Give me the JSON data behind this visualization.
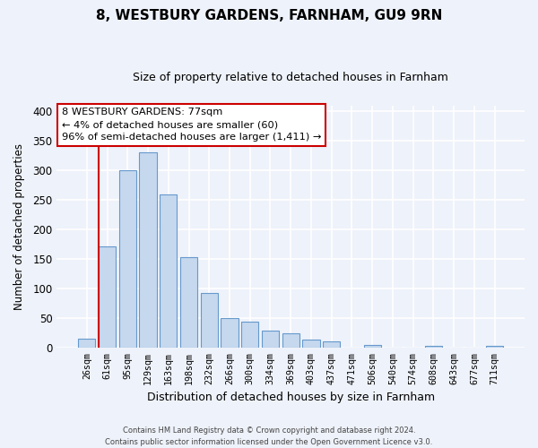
{
  "title": "8, WESTBURY GARDENS, FARNHAM, GU9 9RN",
  "subtitle": "Size of property relative to detached houses in Farnham",
  "xlabel": "Distribution of detached houses by size in Farnham",
  "ylabel": "Number of detached properties",
  "bar_labels": [
    "26sqm",
    "61sqm",
    "95sqm",
    "129sqm",
    "163sqm",
    "198sqm",
    "232sqm",
    "266sqm",
    "300sqm",
    "334sqm",
    "369sqm",
    "403sqm",
    "437sqm",
    "471sqm",
    "506sqm",
    "540sqm",
    "574sqm",
    "608sqm",
    "643sqm",
    "677sqm",
    "711sqm"
  ],
  "bar_heights": [
    15,
    172,
    301,
    330,
    259,
    153,
    92,
    50,
    43,
    29,
    24,
    13,
    11,
    0,
    4,
    0,
    0,
    2,
    0,
    0,
    2
  ],
  "bar_fill_color": "#c5d8ee",
  "bar_edge_color": "#6699cc",
  "highlight_bar_index": 1,
  "highlight_color": "#cc0000",
  "ylim": [
    0,
    410
  ],
  "yticks": [
    0,
    50,
    100,
    150,
    200,
    250,
    300,
    350,
    400
  ],
  "annotation_title": "8 WESTBURY GARDENS: 77sqm",
  "annotation_line1": "← 4% of detached houses are smaller (60)",
  "annotation_line2": "96% of semi-detached houses are larger (1,411) →",
  "annotation_box_color": "#ffffff",
  "annotation_box_edge": "#cc0000",
  "footer_line1": "Contains HM Land Registry data © Crown copyright and database right 2024.",
  "footer_line2": "Contains public sector information licensed under the Open Government Licence v3.0.",
  "background_color": "#eef2fa",
  "grid_color": "#ffffff",
  "title_fontsize": 11,
  "subtitle_fontsize": 9
}
